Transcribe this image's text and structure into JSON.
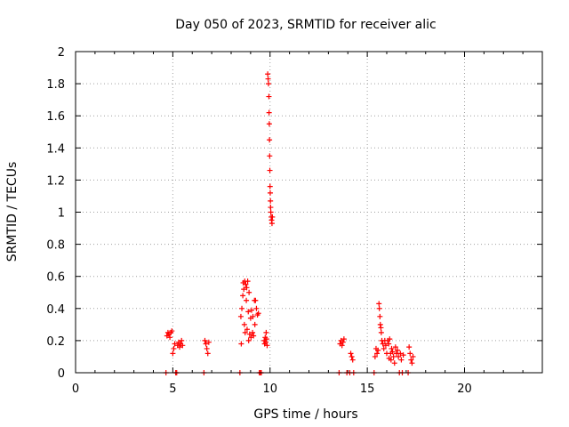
{
  "chart_data": {
    "type": "scatter",
    "title": "Day 050 of 2023, SRMTID for receiver alic",
    "xlabel": "GPS time / hours",
    "ylabel": "SRMTID / TECUs",
    "xlim": [
      0,
      24
    ],
    "ylim": [
      0,
      2
    ],
    "xticks": [
      0,
      5,
      10,
      15,
      20
    ],
    "xtick_labels": [
      "0",
      "5",
      "10",
      "15",
      "20"
    ],
    "yticks": [
      0,
      0.2,
      0.4,
      0.6,
      0.8,
      1,
      1.2,
      1.4,
      1.6,
      1.8,
      2
    ],
    "ytick_labels": [
      "0",
      "0.2",
      "0.4",
      "0.6",
      "0.8",
      "1",
      "1.2",
      "1.4",
      "1.6",
      "1.8",
      "2"
    ],
    "grid": true,
    "series": [
      {
        "name": "SRMTID",
        "marker": "plus",
        "color": "#ff0000",
        "points": [
          [
            4.65,
            0.0
          ],
          [
            4.7,
            0.23
          ],
          [
            4.75,
            0.25
          ],
          [
            4.8,
            0.24
          ],
          [
            4.85,
            0.22
          ],
          [
            4.9,
            0.25
          ],
          [
            4.95,
            0.26
          ],
          [
            5.0,
            0.12
          ],
          [
            5.05,
            0.15
          ],
          [
            5.1,
            0.18
          ],
          [
            5.15,
            0.0
          ],
          [
            5.2,
            0.0
          ],
          [
            5.25,
            0.17
          ],
          [
            5.3,
            0.19
          ],
          [
            5.35,
            0.16
          ],
          [
            5.4,
            0.18
          ],
          [
            5.45,
            0.2
          ],
          [
            5.5,
            0.17
          ],
          [
            6.6,
            0.0
          ],
          [
            6.65,
            0.2
          ],
          [
            6.7,
            0.18
          ],
          [
            6.75,
            0.15
          ],
          [
            6.8,
            0.12
          ],
          [
            6.85,
            0.19
          ],
          [
            8.45,
            0.0
          ],
          [
            8.5,
            0.35
          ],
          [
            8.52,
            0.18
          ],
          [
            8.55,
            0.4
          ],
          [
            8.6,
            0.48
          ],
          [
            8.62,
            0.56
          ],
          [
            8.65,
            0.52
          ],
          [
            8.68,
            0.3
          ],
          [
            8.7,
            0.57
          ],
          [
            8.72,
            0.25
          ],
          [
            8.75,
            0.55
          ],
          [
            8.78,
            0.45
          ],
          [
            8.8,
            0.53
          ],
          [
            8.82,
            0.27
          ],
          [
            8.85,
            0.57
          ],
          [
            8.88,
            0.38
          ],
          [
            8.9,
            0.2
          ],
          [
            8.92,
            0.5
          ],
          [
            8.95,
            0.24
          ],
          [
            9.0,
            0.34
          ],
          [
            9.02,
            0.22
          ],
          [
            9.05,
            0.39
          ],
          [
            9.1,
            0.25
          ],
          [
            9.12,
            0.35
          ],
          [
            9.15,
            0.23
          ],
          [
            9.2,
            0.45
          ],
          [
            9.22,
            0.3
          ],
          [
            9.25,
            0.45
          ],
          [
            9.3,
            0.4
          ],
          [
            9.35,
            0.36
          ],
          [
            9.4,
            0.37
          ],
          [
            9.45,
            0.0
          ],
          [
            9.5,
            0.0
          ],
          [
            9.55,
            0.0
          ],
          [
            9.7,
            0.2
          ],
          [
            9.72,
            0.18
          ],
          [
            9.75,
            0.22
          ],
          [
            9.78,
            0.19
          ],
          [
            9.8,
            0.25
          ],
          [
            9.82,
            0.21
          ],
          [
            9.85,
            0.17
          ],
          [
            9.88,
            1.86
          ],
          [
            9.9,
            1.83
          ],
          [
            9.92,
            1.8
          ],
          [
            9.94,
            1.72
          ],
          [
            9.95,
            1.62
          ],
          [
            9.96,
            1.55
          ],
          [
            9.97,
            1.45
          ],
          [
            9.98,
            1.35
          ],
          [
            9.99,
            1.26
          ],
          [
            10.0,
            1.16
          ],
          [
            10.01,
            1.12
          ],
          [
            10.02,
            1.07
          ],
          [
            10.03,
            1.03
          ],
          [
            10.04,
            1.0
          ],
          [
            10.06,
            0.97
          ],
          [
            10.08,
            0.95
          ],
          [
            10.1,
            0.93
          ],
          [
            10.12,
            0.97
          ],
          [
            13.55,
            0.0
          ],
          [
            13.6,
            0.18
          ],
          [
            13.65,
            0.2
          ],
          [
            13.7,
            0.17
          ],
          [
            13.75,
            0.19
          ],
          [
            13.8,
            0.21
          ],
          [
            13.95,
            0.0
          ],
          [
            14.1,
            0.0
          ],
          [
            14.15,
            0.12
          ],
          [
            14.2,
            0.1
          ],
          [
            14.25,
            0.08
          ],
          [
            14.3,
            0.0
          ],
          [
            15.35,
            0.0
          ],
          [
            15.4,
            0.1
          ],
          [
            15.45,
            0.15
          ],
          [
            15.5,
            0.12
          ],
          [
            15.55,
            0.14
          ],
          [
            15.6,
            0.43
          ],
          [
            15.62,
            0.4
          ],
          [
            15.65,
            0.35
          ],
          [
            15.67,
            0.3
          ],
          [
            15.7,
            0.28
          ],
          [
            15.72,
            0.25
          ],
          [
            15.75,
            0.2
          ],
          [
            15.8,
            0.18
          ],
          [
            15.85,
            0.15
          ],
          [
            15.9,
            0.2
          ],
          [
            15.95,
            0.17
          ],
          [
            16.0,
            0.12
          ],
          [
            16.05,
            0.2
          ],
          [
            16.1,
            0.18
          ],
          [
            16.12,
            0.09
          ],
          [
            16.15,
            0.21
          ],
          [
            16.2,
            0.12
          ],
          [
            16.22,
            0.08
          ],
          [
            16.25,
            0.15
          ],
          [
            16.3,
            0.13
          ],
          [
            16.35,
            0.1
          ],
          [
            16.4,
            0.06
          ],
          [
            16.45,
            0.16
          ],
          [
            16.5,
            0.12
          ],
          [
            16.55,
            0.14
          ],
          [
            16.6,
            0.1
          ],
          [
            16.65,
            0.0
          ],
          [
            16.7,
            0.12
          ],
          [
            16.75,
            0.08
          ],
          [
            16.8,
            0.0
          ],
          [
            16.85,
            0.11
          ],
          [
            17.1,
            0.0
          ],
          [
            17.15,
            0.16
          ],
          [
            17.2,
            0.12
          ],
          [
            17.25,
            0.08
          ],
          [
            17.3,
            0.06
          ],
          [
            17.35,
            0.1
          ]
        ]
      }
    ]
  }
}
